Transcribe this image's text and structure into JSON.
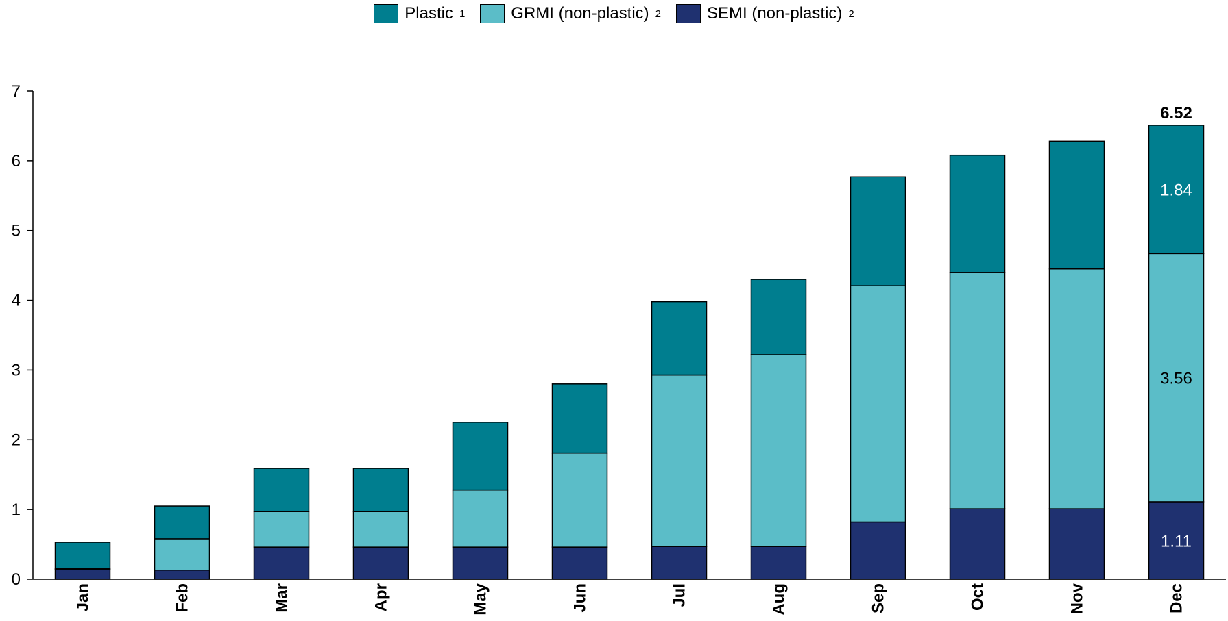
{
  "legend": [
    {
      "label": "Plastic",
      "sup": "1",
      "color": "#007E8F"
    },
    {
      "label": "GRMI (non-plastic)",
      "sup": "2",
      "color": "#5BBDC8"
    },
    {
      "label": "SEMI (non-plastic)",
      "sup": "2",
      "color": "#1F3170"
    }
  ],
  "chart_data": {
    "type": "bar",
    "stacked": true,
    "categories": [
      "Jan",
      "Feb",
      "Mar",
      "Apr",
      "May",
      "Jun",
      "Jul",
      "Aug",
      "Sep",
      "Oct",
      "Nov",
      "Dec"
    ],
    "series": [
      {
        "name": "SEMI (non-plastic)",
        "color": "#1F3170",
        "values": [
          0.14,
          0.13,
          0.46,
          0.46,
          0.46,
          0.46,
          0.47,
          0.47,
          0.82,
          1.01,
          1.01,
          1.11
        ]
      },
      {
        "name": "GRMI (non-plastic)",
        "color": "#5BBDC8",
        "values": [
          0.01,
          0.45,
          0.51,
          0.51,
          0.82,
          1.35,
          2.46,
          2.75,
          3.39,
          3.39,
          3.44,
          3.56
        ]
      },
      {
        "name": "Plastic",
        "color": "#007E8F",
        "values": [
          0.38,
          0.47,
          0.62,
          0.62,
          0.97,
          0.99,
          1.05,
          1.08,
          1.56,
          1.68,
          1.83,
          1.84
        ]
      }
    ],
    "ylim": [
      0,
      7
    ],
    "yticks": [
      "0",
      "1",
      "2",
      "3",
      "4",
      "5",
      "6",
      "7"
    ],
    "data_labels": [
      {
        "category": "Dec",
        "series": "SEMI (non-plastic)",
        "text": "1.11"
      },
      {
        "category": "Dec",
        "series": "GRMI (non-plastic)",
        "text": "3.56"
      },
      {
        "category": "Dec",
        "series": "Plastic",
        "text": "1.84"
      }
    ],
    "total_labels": [
      {
        "category": "Dec",
        "text": "6.52"
      }
    ],
    "grid": false,
    "legend_position": "top"
  }
}
